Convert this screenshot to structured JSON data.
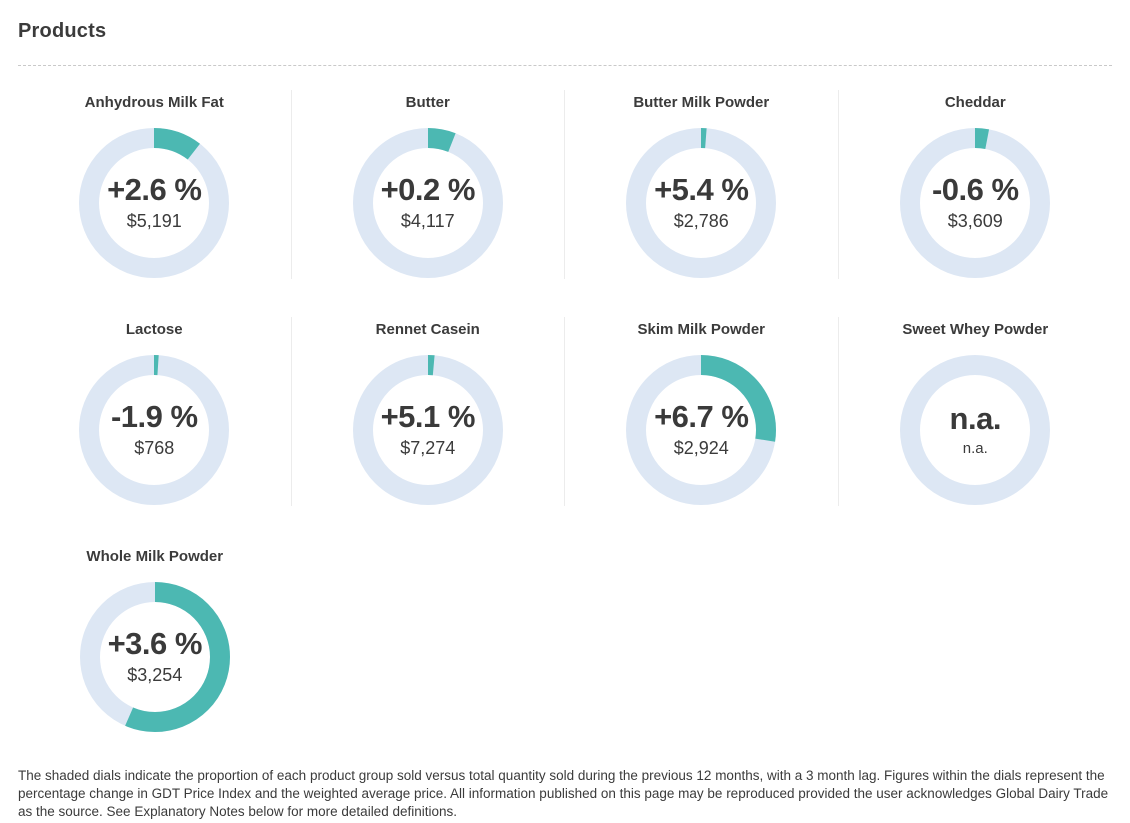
{
  "page": {
    "title": "Products"
  },
  "colors": {
    "accent_teal": "#4cb8b2",
    "ring_blue": "#dde7f4",
    "text_dark": "#3b3b3b",
    "divider": "#c9c9c9",
    "cell_separator": "#ececec"
  },
  "products": [
    {
      "name": "Anhydrous Milk Fat",
      "change": "+2.6 %",
      "price": "$5,191",
      "share_pct": 10.5
    },
    {
      "name": "Butter",
      "change": "+0.2 %",
      "price": "$4,117",
      "share_pct": 6
    },
    {
      "name": "Butter Milk Powder",
      "change": "+5.4 %",
      "price": "$2,786",
      "share_pct": 1.2
    },
    {
      "name": "Cheddar",
      "change": "-0.6 %",
      "price": "$3,609",
      "share_pct": 3
    },
    {
      "name": "Lactose",
      "change": "-1.9 %",
      "price": "$768",
      "share_pct": 1
    },
    {
      "name": "Rennet Casein",
      "change": "+5.1 %",
      "price": "$7,274",
      "share_pct": 1.4
    },
    {
      "name": "Skim Milk Powder",
      "change": "+6.7 %",
      "price": "$2,924",
      "share_pct": 27.5
    },
    {
      "name": "Sweet Whey Powder",
      "change": "n.a.",
      "price": "n.a.",
      "share_pct": 0
    },
    {
      "name": "Whole Milk Powder",
      "change": "+3.6 %",
      "price": "$3,254",
      "share_pct": 56.5
    }
  ],
  "footnote": "The shaded dials indicate the proportion of each product group sold versus total quantity sold during the previous 12 months, with a 3 month lag. Figures within the dials represent the percentage change in GDT Price Index and the weighted average price. All information published on this page may be reproduced provided the user acknowledges Global Dairy Trade as the source. See Explanatory Notes below for more detailed definitions.",
  "chart_data": {
    "type": "pie",
    "variant": "donut-gauge-grid",
    "title": "Products",
    "categories": [
      "Anhydrous Milk Fat",
      "Butter",
      "Butter Milk Powder",
      "Cheddar",
      "Lactose",
      "Rennet Casein",
      "Skim Milk Powder",
      "Sweet Whey Powder",
      "Whole Milk Powder"
    ],
    "series": [
      {
        "name": "GDT Price Index change (%)",
        "values": [
          2.6,
          0.2,
          5.4,
          -0.6,
          -1.9,
          5.1,
          6.7,
          null,
          3.6
        ]
      },
      {
        "name": "Weighted average price ($)",
        "values": [
          5191,
          4117,
          2786,
          3609,
          768,
          7274,
          2924,
          null,
          3254
        ]
      },
      {
        "name": "Share of quantity sold shown by teal arc (%, estimated from dial)",
        "values": [
          10.5,
          6,
          1.2,
          3,
          1,
          1.4,
          27.5,
          0,
          56.5
        ]
      }
    ],
    "layout": {
      "grid": "4 columns x 3 rows",
      "arc_start": "12 o'clock, clockwise",
      "legend": "none"
    }
  }
}
